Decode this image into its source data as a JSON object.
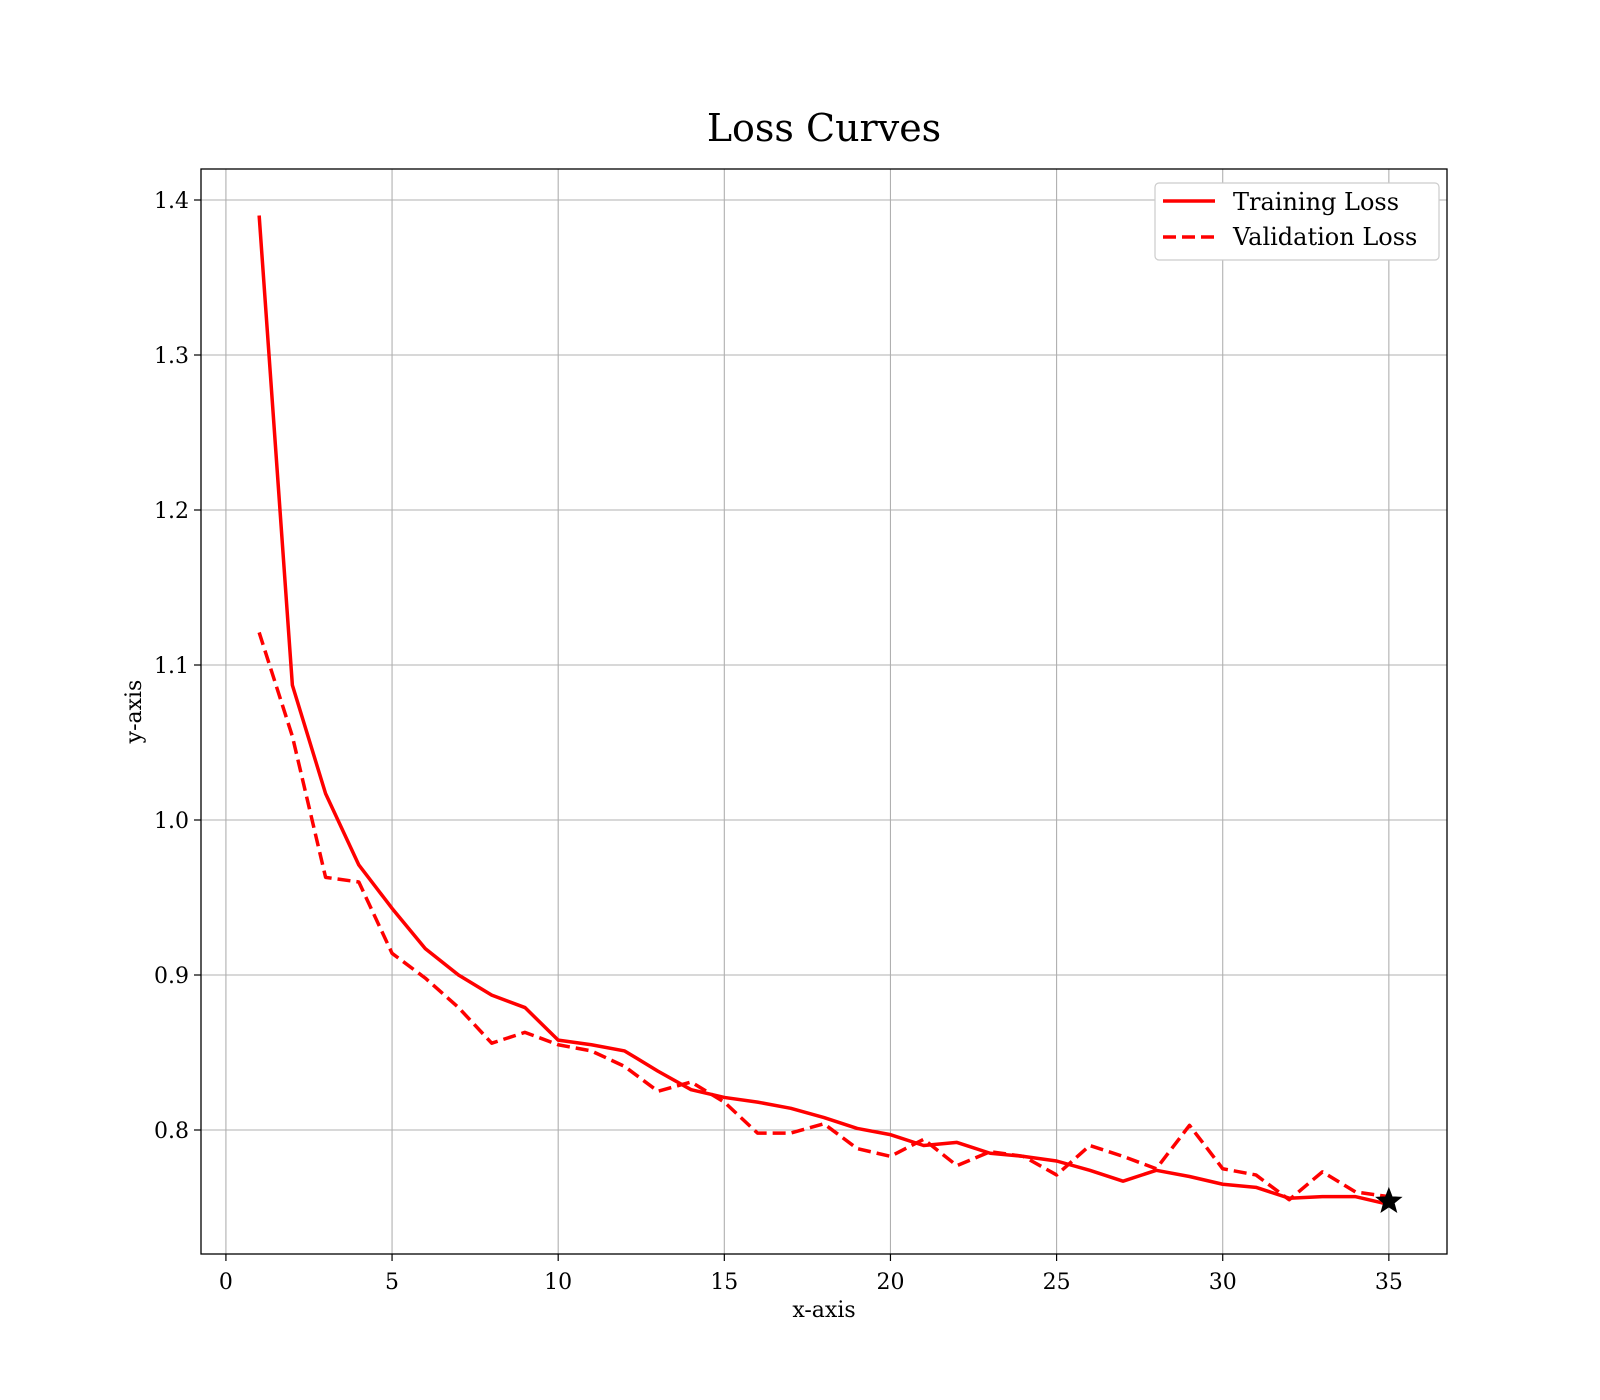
{
  "chart_data": {
    "type": "line",
    "title": "Loss Curves",
    "xlabel": "x-axis",
    "ylabel": "y-axis",
    "xlim": [
      -0.75,
      36.75
    ],
    "ylim": [
      0.72,
      1.42
    ],
    "xticks": [
      0,
      5,
      10,
      15,
      20,
      25,
      30,
      35
    ],
    "yticks": [
      0.8,
      0.9,
      1.0,
      1.1,
      1.2,
      1.3,
      1.4
    ],
    "ytick_labels": [
      "0.8",
      "0.9",
      "1.0",
      "1.1",
      "1.2",
      "1.3",
      "1.4"
    ],
    "grid": true,
    "legend_position": "upper right",
    "x": [
      1,
      2,
      3,
      4,
      5,
      6,
      7,
      8,
      9,
      10,
      11,
      12,
      13,
      14,
      15,
      16,
      17,
      18,
      19,
      20,
      21,
      22,
      23,
      24,
      25,
      26,
      27,
      28,
      29,
      30,
      31,
      32,
      33,
      34,
      35
    ],
    "series": [
      {
        "name": "Training Loss",
        "style": "solid",
        "color": "#ff0000",
        "values": [
          1.39,
          1.087,
          1.017,
          0.971,
          0.943,
          0.917,
          0.9,
          0.887,
          0.879,
          0.858,
          0.855,
          0.851,
          0.838,
          0.826,
          0.821,
          0.818,
          0.814,
          0.808,
          0.801,
          0.797,
          0.79,
          0.792,
          0.785,
          0.783,
          0.78,
          0.774,
          0.767,
          0.774,
          0.77,
          0.765,
          0.763,
          0.756,
          0.757,
          0.757,
          0.752
        ]
      },
      {
        "name": "Validation Loss",
        "style": "dashed",
        "color": "#ff0000",
        "values": [
          1.121,
          1.054,
          0.963,
          0.96,
          0.914,
          0.898,
          0.879,
          0.856,
          0.863,
          0.855,
          0.851,
          0.841,
          0.825,
          0.831,
          0.818,
          0.798,
          0.798,
          0.804,
          0.788,
          0.783,
          0.794,
          0.777,
          0.786,
          0.783,
          0.771,
          0.79,
          0.783,
          0.775,
          0.803,
          0.775,
          0.771,
          0.755,
          0.773,
          0.76,
          0.757
        ]
      }
    ],
    "marker": {
      "shape": "star",
      "color": "#000000",
      "x": 35,
      "y": 0.754
    }
  }
}
